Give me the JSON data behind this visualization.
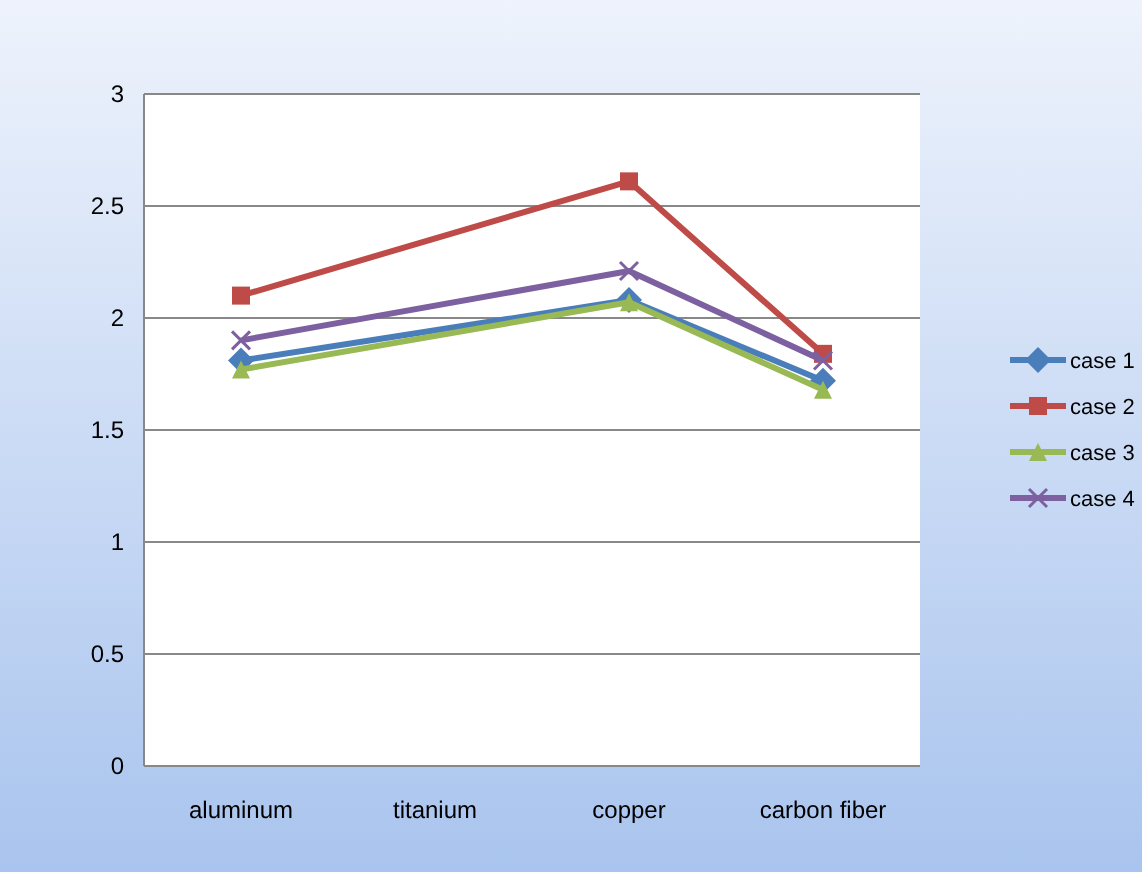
{
  "chart_data": {
    "type": "line",
    "categories": [
      "aluminum",
      "titanium",
      "copper",
      "carbon fiber"
    ],
    "series": [
      {
        "name": "case 1",
        "color": "#4a7ebb",
        "marker": "diamond",
        "values": [
          1.81,
          null,
          2.08,
          1.72
        ]
      },
      {
        "name": "case 2",
        "color": "#be4b48",
        "marker": "square",
        "values": [
          2.1,
          null,
          2.61,
          1.84
        ]
      },
      {
        "name": "case 3",
        "color": "#98b954",
        "marker": "triangle",
        "values": [
          1.77,
          null,
          2.07,
          1.68
        ]
      },
      {
        "name": "case 4",
        "color": "#7d60a0",
        "marker": "cross",
        "values": [
          1.9,
          null,
          2.21,
          1.81
        ]
      }
    ],
    "ylim": [
      0,
      3
    ],
    "yticks": [
      0,
      0.5,
      1,
      1.5,
      2,
      2.5,
      3
    ],
    "grid": "y",
    "legend": "right"
  }
}
